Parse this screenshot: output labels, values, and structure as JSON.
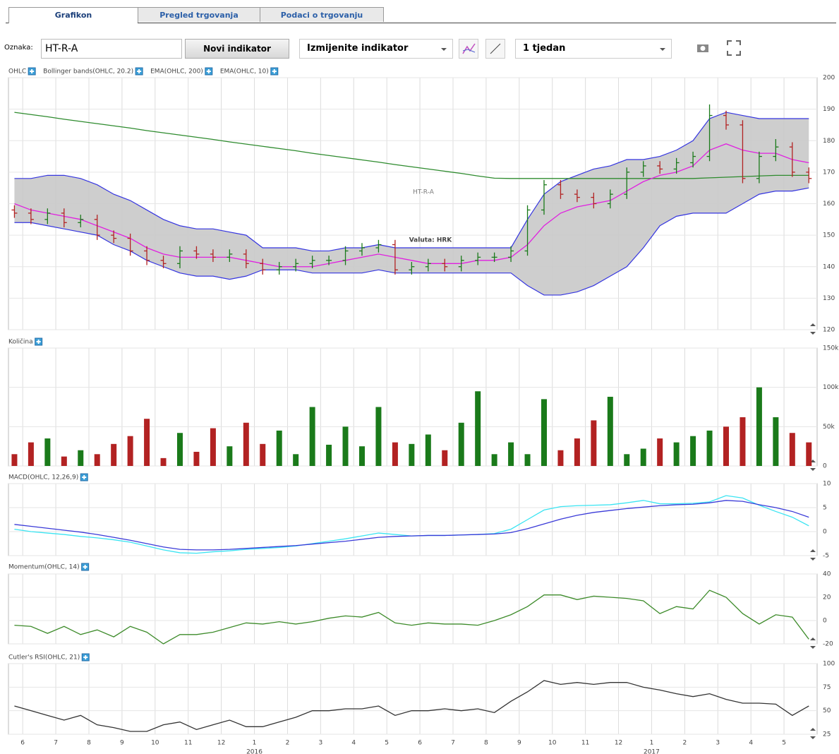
{
  "tabs": [
    "Grafikon",
    "Pregled trgovanja",
    "Podaci o trgovanju"
  ],
  "toolbar": {
    "symbol_label": "Oznaka:",
    "symbol": "HT-R-A",
    "new_indicator": "Novi indikator",
    "edit_indicator": "Izmijenite indikator",
    "period": "1 tjedan"
  },
  "x_axis": {
    "xlim": [
      -0.43,
      24
    ],
    "xticks": [
      {
        "value": 0,
        "label": "6"
      },
      {
        "value": 1,
        "label": "7"
      },
      {
        "value": 2,
        "label": "8"
      },
      {
        "value": 3,
        "label": "9"
      },
      {
        "value": 4,
        "label": "10"
      },
      {
        "value": 5,
        "label": "11"
      },
      {
        "value": 6,
        "label": "12"
      },
      {
        "value": 7,
        "label": "1"
      },
      {
        "value": 8,
        "label": "2"
      },
      {
        "value": 9,
        "label": "3"
      },
      {
        "value": 10,
        "label": "4"
      },
      {
        "value": 11,
        "label": "5"
      },
      {
        "value": 12,
        "label": "6"
      },
      {
        "value": 13,
        "label": "7"
      },
      {
        "value": 14,
        "label": "8"
      },
      {
        "value": 15,
        "label": "9"
      },
      {
        "value": 16,
        "label": "10"
      },
      {
        "value": 17,
        "label": "11"
      },
      {
        "value": 18,
        "label": "12"
      },
      {
        "value": 19,
        "label": "1"
      },
      {
        "value": 20,
        "label": "2"
      },
      {
        "value": 21,
        "label": "3"
      },
      {
        "value": 22,
        "label": "4"
      },
      {
        "value": 23,
        "label": "5"
      }
    ],
    "years": [
      {
        "value": 7,
        "label": "2016"
      },
      {
        "value": 19,
        "label": "2017"
      }
    ],
    "x": [
      -0.25,
      0.25,
      0.75,
      1.25,
      1.75,
      2.25,
      2.75,
      3.25,
      3.75,
      4.25,
      4.75,
      5.25,
      5.75,
      6.25,
      6.75,
      7.25,
      7.75,
      8.25,
      8.75,
      9.25,
      9.75,
      10.25,
      10.75,
      11.25,
      11.75,
      12.25,
      12.75,
      13.25,
      13.75,
      14.25,
      14.75,
      15.25,
      15.75,
      16.25,
      16.75,
      17.25,
      17.75,
      18.25,
      18.75,
      19.25,
      19.75,
      20.25,
      20.75,
      21.25,
      21.75,
      22.25,
      22.75,
      23.25,
      23.75
    ]
  },
  "chart_data": [
    {
      "type": "ohlc",
      "title": "OHLC",
      "title_color": "#333333",
      "watermark": "HT-R-A",
      "subtitle": "Valuta: HRK",
      "up_color": "#1a7a1a",
      "down_color": "#b22222",
      "ylim": [
        120,
        200
      ],
      "yticks": [
        200,
        190,
        180,
        170,
        160,
        150,
        140,
        130,
        120
      ],
      "open": [
        158,
        157,
        155,
        157,
        154,
        155,
        150,
        149,
        145,
        142,
        141,
        145,
        144,
        143,
        144,
        141,
        139,
        140,
        141,
        142,
        142,
        145,
        146,
        147,
        139,
        140,
        141,
        140,
        142,
        143,
        143,
        145,
        158,
        166,
        163,
        162,
        160,
        163,
        170,
        172,
        171,
        173,
        175,
        188,
        185,
        168,
        175,
        178,
        170
      ],
      "high": [
        159.5,
        158.5,
        158.5,
        158.5,
        156.5,
        156.5,
        151.5,
        150.5,
        146.5,
        143.5,
        146.5,
        146.5,
        145.5,
        145.5,
        145.5,
        142.5,
        141.5,
        142.5,
        143.5,
        143.5,
        146.5,
        147.5,
        148.5,
        148.5,
        141.5,
        142.5,
        142.5,
        143.5,
        144.5,
        144.5,
        146.5,
        159.5,
        167.5,
        167.5,
        164.5,
        163.5,
        164.5,
        171.5,
        173.5,
        173.5,
        174.5,
        176.5,
        191.5,
        189.5,
        186.5,
        176.5,
        180.5,
        179.5,
        171.5
      ],
      "low": [
        155.5,
        153.5,
        153.5,
        152.5,
        152.5,
        148.5,
        147.5,
        143.5,
        140.5,
        139.5,
        139.5,
        142.5,
        141.5,
        141.5,
        139.5,
        137.5,
        137.5,
        138.5,
        139.5,
        140.5,
        140.5,
        143.5,
        144.5,
        137.5,
        137.5,
        138.5,
        138.5,
        138.5,
        140.5,
        141.5,
        141.5,
        143.5,
        156.5,
        161.5,
        160.5,
        158.5,
        158.5,
        161.5,
        168.5,
        169.5,
        169.5,
        171.5,
        173.5,
        183.5,
        166.5,
        166.5,
        173.5,
        168.5,
        166.5
      ],
      "close": [
        157,
        155,
        157,
        154,
        155,
        150,
        149,
        145,
        142,
        141,
        145,
        144,
        143,
        144,
        141,
        139,
        140,
        141,
        142,
        142,
        145,
        146,
        147,
        139,
        140,
        141,
        140,
        142,
        143,
        143,
        145,
        158,
        166,
        163,
        162,
        160,
        163,
        170,
        172,
        171,
        173,
        175,
        188,
        185,
        168,
        175,
        178,
        170,
        168
      ],
      "bands": {
        "name": "Bollinger bands(OHLC, 20.2)",
        "color": "#3535e0",
        "fill": "#c9c9c9",
        "upper": [
          168,
          168,
          169,
          169,
          168,
          166,
          163,
          161,
          158,
          155,
          153,
          152,
          152,
          151,
          150,
          146,
          146,
          146,
          145,
          145,
          146,
          146,
          147,
          146,
          146,
          146,
          146,
          146,
          146,
          146,
          146,
          155,
          163,
          167,
          169,
          171,
          172,
          174,
          174,
          175,
          177,
          180,
          187,
          189,
          188,
          187,
          187,
          187,
          187
        ],
        "lower": [
          154,
          154,
          153,
          152,
          151,
          150,
          147,
          145,
          142,
          140,
          138,
          137,
          137,
          136,
          137,
          139,
          139,
          139,
          138,
          138,
          138,
          138,
          139,
          138,
          138,
          138,
          138,
          138,
          138,
          138,
          138,
          134,
          131,
          131,
          132,
          134,
          137,
          140,
          146,
          153,
          156,
          157,
          157,
          157,
          160,
          163,
          164,
          164,
          165
        ]
      },
      "series": [
        {
          "name": "EMA(OHLC, 200)",
          "color": "#2e8b2e",
          "values": [
            189,
            188.3,
            187.6,
            186.8,
            186.1,
            185.4,
            184.7,
            184,
            183.2,
            182.5,
            181.8,
            181.1,
            180.4,
            179.6,
            178.9,
            178.2,
            177.5,
            176.8,
            176,
            175.3,
            174.6,
            173.9,
            173.2,
            172.4,
            171.7,
            171,
            170.3,
            169.6,
            168.8,
            168.1,
            168,
            168,
            168,
            168,
            168,
            168,
            168,
            168,
            168,
            168,
            168,
            168,
            168.2,
            168.4,
            168.6,
            168.8,
            169,
            169,
            169
          ]
        },
        {
          "name": "EMA(OHLC, 10)",
          "color": "#e020e0",
          "values": [
            160,
            158,
            157,
            156,
            155,
            153,
            151,
            149,
            146,
            144,
            143,
            143,
            143,
            143,
            142,
            141,
            140,
            140,
            140,
            141,
            142,
            143,
            144,
            143,
            142,
            141,
            141,
            141,
            142,
            142,
            143,
            147,
            153,
            157,
            159,
            160,
            161,
            164,
            167,
            169,
            170,
            172,
            177,
            179,
            177,
            176,
            176,
            174,
            173
          ]
        }
      ]
    },
    {
      "type": "bar",
      "title": "Količina",
      "title_color": "#333333",
      "ylim": [
        0,
        150000
      ],
      "yticks": [
        {
          "value": 150000,
          "label": "150k"
        },
        {
          "value": 100000,
          "label": "100k"
        },
        {
          "value": 50000,
          "label": "50k"
        },
        0
      ],
      "values": [
        15000,
        30000,
        35000,
        12000,
        20000,
        15000,
        28000,
        38000,
        60000,
        10000,
        42000,
        18000,
        48000,
        25000,
        55000,
        28000,
        45000,
        15000,
        75000,
        27000,
        50000,
        25000,
        75000,
        30000,
        28000,
        40000,
        20000,
        55000,
        95000,
        15000,
        30000,
        15000,
        85000,
        20000,
        35000,
        58000,
        88000,
        15000,
        22000,
        35000,
        30000,
        38000,
        45000,
        50000,
        62000,
        100000,
        62000,
        42000,
        30000
      ]
    },
    {
      "type": "line",
      "title": "MACD(OHLC, 12,26,9)",
      "title_color": "#22d3e6",
      "ylim": [
        -5,
        10
      ],
      "yticks": [
        10,
        5,
        0,
        -5
      ],
      "series": [
        {
          "color": "#3ae4f2",
          "values": [
            0.5,
            0,
            -0.3,
            -0.6,
            -1,
            -1.3,
            -1.7,
            -2.2,
            -3,
            -3.8,
            -4.4,
            -4.5,
            -4.2,
            -4,
            -3.7,
            -3.5,
            -3.3,
            -3,
            -2.5,
            -2,
            -1.5,
            -0.9,
            -0.3,
            -0.6,
            -0.9,
            -0.8,
            -0.8,
            -0.7,
            -0.6,
            -0.4,
            0.5,
            2.5,
            4.5,
            5.2,
            5.4,
            5.5,
            5.6,
            6,
            6.5,
            5.8,
            5.8,
            5.9,
            6.2,
            7.5,
            7,
            5.5,
            4.2,
            3,
            1.2
          ]
        },
        {
          "color": "#3a3ad8",
          "values": [
            1.5,
            1.1,
            0.7,
            0.3,
            -0.1,
            -0.6,
            -1.2,
            -1.8,
            -2.5,
            -3.2,
            -3.7,
            -3.8,
            -3.8,
            -3.7,
            -3.5,
            -3.3,
            -3.1,
            -2.9,
            -2.6,
            -2.3,
            -2,
            -1.6,
            -1.2,
            -1,
            -0.9,
            -0.8,
            -0.8,
            -0.7,
            -0.6,
            -0.5,
            -0.2,
            0.6,
            1.6,
            2.6,
            3.4,
            4,
            4.4,
            4.8,
            5.1,
            5.4,
            5.6,
            5.7,
            6,
            6.5,
            6.3,
            5.6,
            5,
            4.2,
            3
          ]
        }
      ]
    },
    {
      "type": "line",
      "title": "Momentum(OHLC, 14)",
      "title_color": "#2e7d2e",
      "ylim": [
        -20,
        40
      ],
      "yticks": [
        40,
        20,
        0,
        -20
      ],
      "series": [
        {
          "color": "#3d8b2a",
          "values": [
            -4,
            -5,
            -11,
            -5,
            -12,
            -8,
            -14,
            -5,
            -10,
            -20,
            -12,
            -12,
            -10,
            -6,
            -2,
            -3,
            -1,
            -3,
            -1,
            2,
            4,
            3,
            7,
            -2,
            -4,
            -2,
            -3,
            -3,
            -4,
            0,
            5,
            12,
            22,
            22,
            18,
            21,
            20,
            19,
            17,
            6,
            12,
            10,
            26,
            20,
            6,
            -3,
            5,
            3,
            -16
          ]
        }
      ]
    },
    {
      "type": "line",
      "title": "Cutler's RSI(OHLC, 21)",
      "title_color": "#333333",
      "ylim": [
        25,
        100
      ],
      "yticks": [
        100,
        75,
        50,
        25
      ],
      "series": [
        {
          "color": "#333333",
          "values": [
            55,
            50,
            45,
            40,
            45,
            35,
            32,
            28,
            28,
            35,
            38,
            30,
            35,
            40,
            33,
            33,
            38,
            43,
            50,
            50,
            52,
            52,
            55,
            45,
            50,
            50,
            52,
            50,
            52,
            48,
            60,
            70,
            82,
            78,
            80,
            78,
            80,
            80,
            75,
            72,
            68,
            65,
            68,
            62,
            58,
            58,
            57,
            45,
            55
          ]
        }
      ]
    }
  ]
}
